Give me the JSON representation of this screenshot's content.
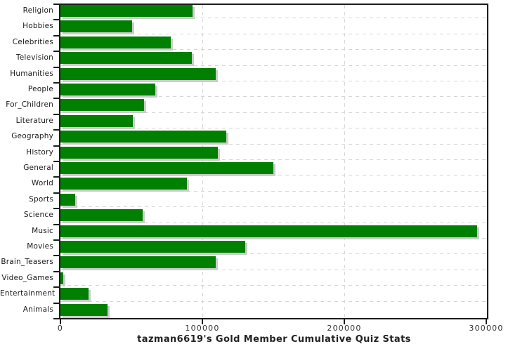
{
  "title": "tazman6619's Gold Member Cumulative Quiz Stats",
  "chart_data": {
    "type": "bar",
    "orientation": "horizontal",
    "title": "tazman6619's Gold Member Cumulative Quiz Stats",
    "categories": [
      "Religion",
      "Hobbies",
      "Celebrities",
      "Television",
      "Humanities",
      "People",
      "For_Children",
      "Literature",
      "Geography",
      "History",
      "General",
      "World",
      "Sports",
      "Science",
      "Music",
      "Movies",
      "Brain_Teasers",
      "Video_Games",
      "Entertainment",
      "Animals"
    ],
    "values": [
      93000,
      50500,
      77500,
      92500,
      109500,
      67000,
      59000,
      51000,
      117000,
      111000,
      150000,
      89000,
      10500,
      58000,
      293500,
      130000,
      109500,
      2200,
      20000,
      33000
    ],
    "xlabel": "",
    "ylabel": "",
    "xlim": [
      0,
      300000
    ],
    "xticks": [
      0,
      100000,
      200000,
      300000
    ],
    "xtick_labels": [
      "0",
      "100000",
      "200000",
      "300000"
    ],
    "grid": true,
    "legend": false,
    "bar_color": "#008000",
    "shadow_color": "#cccccc",
    "grid_color": "#d6d6d6",
    "axis_color": "#1c1c1c"
  }
}
